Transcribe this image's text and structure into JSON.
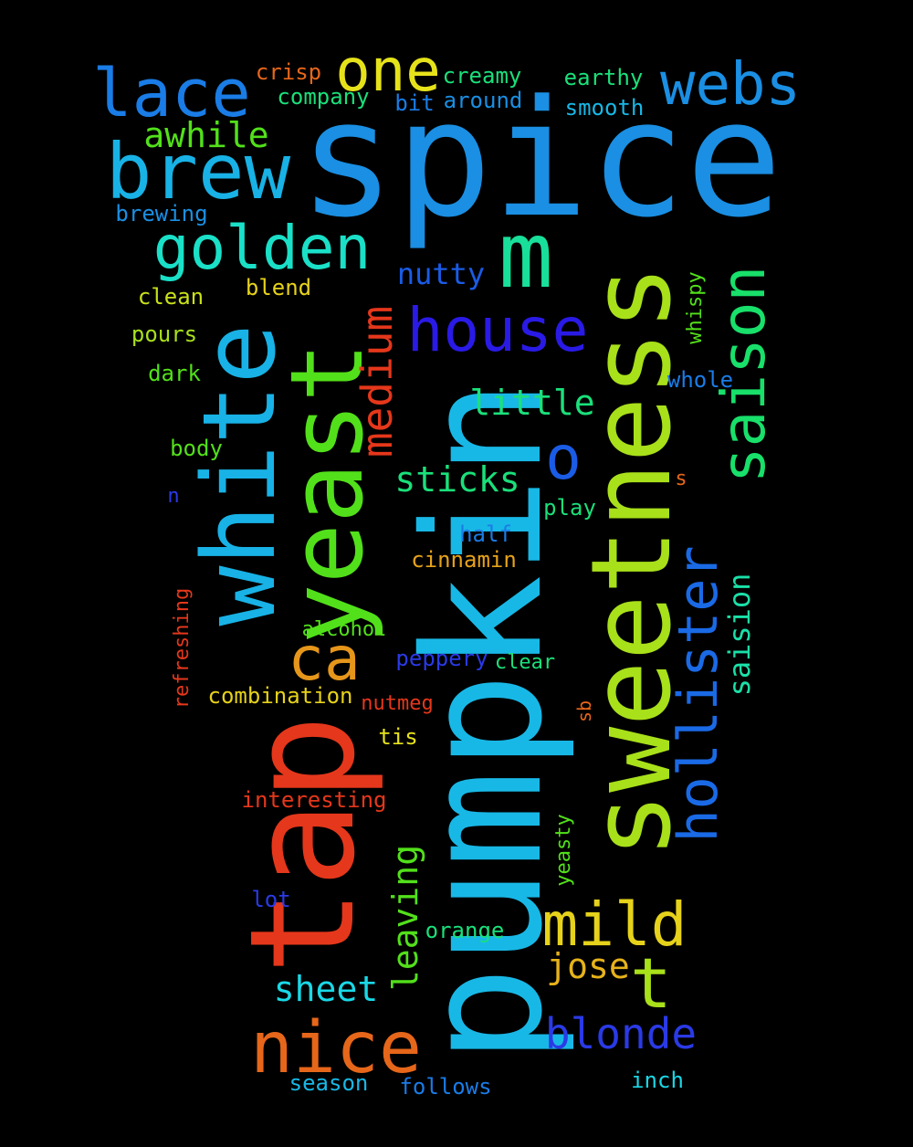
{
  "words": [
    {
      "text": "spice",
      "color": "#1a8fe3"
    },
    {
      "text": "pumpkin",
      "color": "#18b8e6"
    },
    {
      "text": "tap",
      "color": "#e5371b"
    },
    {
      "text": "sweetness",
      "color": "#a8e01a"
    },
    {
      "text": "white",
      "color": "#18b2e6"
    },
    {
      "text": "yeast",
      "color": "#52e01a"
    },
    {
      "text": "m",
      "color": "#18e09a"
    },
    {
      "text": "brew",
      "color": "#18b2e6"
    },
    {
      "text": "lace",
      "color": "#1a7ce6"
    },
    {
      "text": "webs",
      "color": "#1a8fe3"
    },
    {
      "text": "one",
      "color": "#e6e21a"
    },
    {
      "text": "golden",
      "color": "#1ae0c8"
    },
    {
      "text": "house",
      "color": "#2a1ae6"
    },
    {
      "text": "saison",
      "color": "#18e06a"
    },
    {
      "text": "o",
      "color": "#1a5ce6"
    },
    {
      "text": "nice",
      "color": "#e6661a"
    },
    {
      "text": "mild",
      "color": "#e6d21a"
    },
    {
      "text": "t",
      "color": "#a8e01a"
    },
    {
      "text": "ca",
      "color": "#e6961a"
    },
    {
      "text": "hollister",
      "color": "#1a6ae6"
    },
    {
      "text": "blonde",
      "color": "#2a3ae6"
    },
    {
      "text": "medium",
      "color": "#e5371b"
    },
    {
      "text": "awhile",
      "color": "#52e01a"
    },
    {
      "text": "sticks",
      "color": "#1ae07a"
    },
    {
      "text": "little",
      "color": "#1ae07a"
    },
    {
      "text": "sheet",
      "color": "#1ad8e6"
    },
    {
      "text": "leaving",
      "color": "#52e01a"
    },
    {
      "text": "jose",
      "color": "#e6b21a"
    },
    {
      "text": "nutty",
      "color": "#1a5ce6"
    },
    {
      "text": "saision",
      "color": "#1ae0a8"
    },
    {
      "text": "crisp",
      "color": "#e6661a"
    },
    {
      "text": "creamy",
      "color": "#1ae07a"
    },
    {
      "text": "company",
      "color": "#1ae07a"
    },
    {
      "text": "bit",
      "color": "#1a7ce6"
    },
    {
      "text": "around",
      "color": "#1a8fe3"
    },
    {
      "text": "earthy",
      "color": "#1ae07a"
    },
    {
      "text": "smooth",
      "color": "#18b8e6"
    },
    {
      "text": "brewing",
      "color": "#1a8fe3"
    },
    {
      "text": "clean",
      "color": "#c8e01a"
    },
    {
      "text": "blend",
      "color": "#e6d21a"
    },
    {
      "text": "pours",
      "color": "#a8e01a"
    },
    {
      "text": "dark",
      "color": "#52e01a"
    },
    {
      "text": "body",
      "color": "#52e01a"
    },
    {
      "text": "n",
      "color": "#2a3ae6"
    },
    {
      "text": "whispy",
      "color": "#52e01a"
    },
    {
      "text": "whole",
      "color": "#1a7ce6"
    },
    {
      "text": "s",
      "color": "#e6661a"
    },
    {
      "text": "play",
      "color": "#1ae07a"
    },
    {
      "text": "half",
      "color": "#1a7ce6"
    },
    {
      "text": "cinnamin",
      "color": "#e6a21a"
    },
    {
      "text": "refreshing",
      "color": "#e5371b"
    },
    {
      "text": "alcohol",
      "color": "#52e01a"
    },
    {
      "text": "peppery",
      "color": "#2a3ae6"
    },
    {
      "text": "clear",
      "color": "#1ae07a"
    },
    {
      "text": "combination",
      "color": "#e6d21a"
    },
    {
      "text": "nutmeg",
      "color": "#e5371b"
    },
    {
      "text": "sb",
      "color": "#e6661a"
    },
    {
      "text": "tis",
      "color": "#e6e21a"
    },
    {
      "text": "interesting",
      "color": "#e5371b"
    },
    {
      "text": "yeasty",
      "color": "#52e01a"
    },
    {
      "text": "lot",
      "color": "#2a3ae6"
    },
    {
      "text": "orange",
      "color": "#1ae07a"
    },
    {
      "text": "season",
      "color": "#18b8e6"
    },
    {
      "text": "follows",
      "color": "#1a7ce6"
    },
    {
      "text": "inch",
      "color": "#1ad8e6"
    }
  ]
}
